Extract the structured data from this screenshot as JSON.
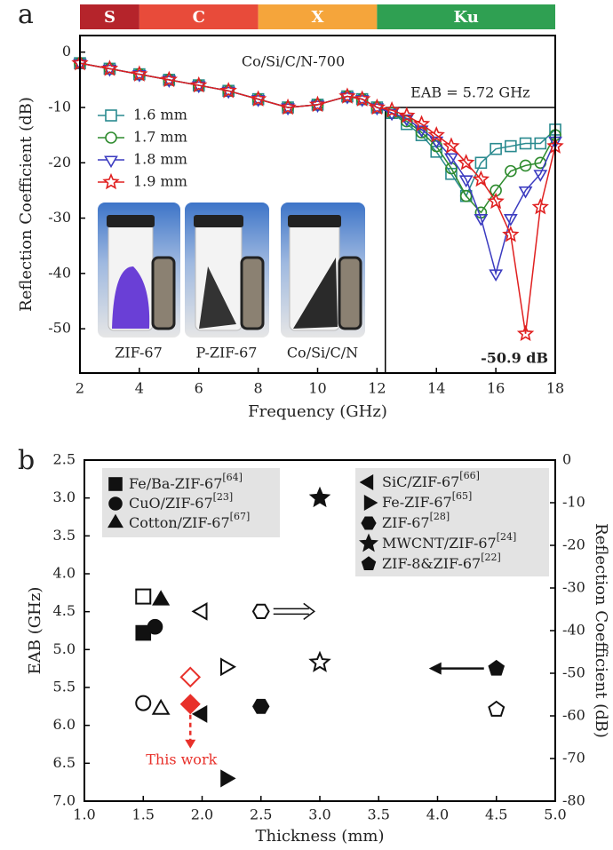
{
  "chart_data": [
    {
      "type": "line",
      "panel_label": "a",
      "title": "Co/Si/C/N-700",
      "xlabel": "Frequency (GHz)",
      "ylabel": "Reflection Coefficient (dB)",
      "xlim": [
        2,
        18
      ],
      "xticks": [
        2,
        4,
        6,
        8,
        10,
        12,
        14,
        16,
        18
      ],
      "ylim": [
        -58,
        3
      ],
      "yticks": [
        0,
        -10,
        -20,
        -30,
        -40,
        -50
      ],
      "bands": [
        {
          "label": "S",
          "from": 2,
          "to": 4,
          "color": "#b5242b"
        },
        {
          "label": "C",
          "from": 4,
          "to": 8,
          "color": "#e84b3a"
        },
        {
          "label": "X",
          "from": 8,
          "to": 12,
          "color": "#f5a53b"
        },
        {
          "label": "Ku",
          "from": 12,
          "to": 18,
          "color": "#2fa052"
        }
      ],
      "x": [
        2,
        3,
        4,
        5,
        6,
        7,
        8,
        9,
        10,
        11,
        11.5,
        12,
        12.5,
        13,
        13.5,
        14,
        14.5,
        15,
        15.5,
        16,
        16.5,
        17,
        17.5,
        18
      ],
      "series": [
        {
          "name": "1.6 mm",
          "color": "#2a8a8f",
          "marker": "square",
          "values": [
            -2,
            -3,
            -4,
            -5,
            -6,
            -7,
            -8.5,
            -10,
            -9.5,
            -8,
            -8.5,
            -10,
            -11,
            -13,
            -15,
            -18,
            -22,
            -26,
            -20,
            -17.5,
            -17,
            -16.5,
            -16.5,
            -14
          ]
        },
        {
          "name": "1.7 mm",
          "color": "#2e8b2e",
          "marker": "circle",
          "values": [
            -2,
            -3,
            -4,
            -5,
            -6,
            -7,
            -8.5,
            -10,
            -9.5,
            -8,
            -8.5,
            -10,
            -11,
            -12.5,
            -14.5,
            -17,
            -21,
            -26,
            -29,
            -25,
            -21.5,
            -20.5,
            -20,
            -15
          ]
        },
        {
          "name": "1.8 mm",
          "color": "#3b3bc0",
          "marker": "tri-down",
          "values": [
            -2,
            -3,
            -4,
            -5,
            -6,
            -7,
            -8.5,
            -10,
            -9.5,
            -8,
            -8.5,
            -10,
            -11,
            -12,
            -14,
            -16,
            -19,
            -23,
            -30,
            -40,
            -30,
            -25,
            -22,
            -16
          ]
        },
        {
          "name": "1.9 mm",
          "color": "#e02020",
          "marker": "star",
          "values": [
            -2,
            -3,
            -4,
            -5,
            -6,
            -7,
            -8.5,
            -10,
            -9.5,
            -8,
            -8.5,
            -10,
            -10.5,
            -11.5,
            -13,
            -15,
            -17,
            -20,
            -23,
            -27,
            -33,
            -50.9,
            -28,
            -17
          ]
        }
      ],
      "legend": "upper left",
      "eab_label": "EAB = 5.72 GHz",
      "eab_box": {
        "x": [
          12.28,
          18
        ],
        "y": -10
      },
      "min_label": "-50.9 dB",
      "photos": [
        "ZIF-67",
        "P-ZIF-67",
        "Co/Si/C/N"
      ]
    },
    {
      "type": "scatter",
      "panel_label": "b",
      "xlabel": "Thickness (mm)",
      "ylabel": "EAB (GHz)",
      "y2label": "Reflection Coefficient (dB)",
      "xlim": [
        1.0,
        5.0
      ],
      "xticks": [
        {
          "value": 1,
          "label": "1.0"
        },
        1.5,
        {
          "value": 2,
          "label": "2.0"
        },
        2.5,
        {
          "value": 3,
          "label": "3.0"
        },
        3.5,
        {
          "value": 4,
          "label": "4.0"
        },
        4.5,
        {
          "value": 5,
          "label": "5.0"
        }
      ],
      "ylim": [
        7.0,
        2.5
      ],
      "yticks": [
        2.5,
        {
          "value": 3,
          "label": "3.0"
        },
        3.5,
        {
          "value": 4,
          "label": "4.0"
        },
        4.5,
        {
          "value": 5,
          "label": "5.0"
        },
        5.5,
        {
          "value": 6,
          "label": "6.0"
        },
        6.5,
        {
          "value": 7,
          "label": "7.0"
        }
      ],
      "y2lim": [
        -80,
        0
      ],
      "y2ticks": [
        0,
        -10,
        -20,
        -30,
        -40,
        -50,
        -60,
        -70,
        -80
      ],
      "series": [
        {
          "name": "Fe/Ba-ZIF-67",
          "ref": "[64]",
          "marker": "square",
          "x": [
            1.5,
            1.5
          ],
          "eab": 4.78,
          "rc": -32
        },
        {
          "name": "CuO/ZIF-67",
          "ref": "[23]",
          "marker": "circle",
          "x": [
            1.6,
            1.5
          ],
          "eab": 4.7,
          "rc": -57
        },
        {
          "name": "Cotton/ZIF-67",
          "ref": "[67]",
          "marker": "tri-up",
          "x": [
            1.65,
            1.65
          ],
          "eab": 4.35,
          "rc": -58.5
        },
        {
          "name": "SiC/ZIF-67",
          "ref": "[66]",
          "marker": "tri-left",
          "x": [
            2.0,
            2.0
          ],
          "eab": 5.85,
          "rc": -35.5
        },
        {
          "name": "Fe-ZIF-67",
          "ref": "[65]",
          "marker": "tri-right",
          "x": [
            2.2,
            2.2
          ],
          "eab": 6.7,
          "rc": -48.5
        },
        {
          "name": "ZIF-67",
          "ref": "[28]",
          "marker": "hexagon",
          "x": [
            2.5,
            2.5
          ],
          "eab": 5.75,
          "rc": -35.5
        },
        {
          "name": "MWCNT/ZIF-67",
          "ref": "[24]",
          "marker": "star",
          "x": [
            3.0,
            3.0
          ],
          "eab": 3.0,
          "rc": -47.5
        },
        {
          "name": "ZIF-8&ZIF-67",
          "ref": "[22]",
          "marker": "pentagon",
          "x": [
            4.5,
            4.5
          ],
          "eab": 5.25,
          "rc": -58.5
        }
      ],
      "highlight": {
        "label": "This work",
        "color": "#e8302a",
        "marker": "diamond",
        "x": [
          1.9,
          1.9
        ],
        "eab": 5.72,
        "rc": -50.9
      }
    }
  ]
}
